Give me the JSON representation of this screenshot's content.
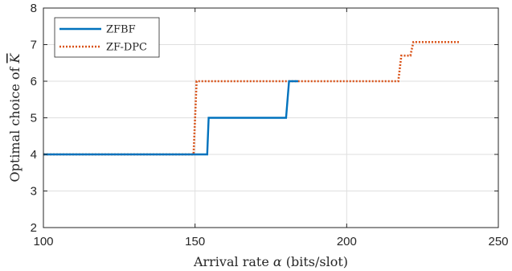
{
  "chart_data": {
    "type": "line",
    "title": "",
    "xlabel_text": "Arrival rate ",
    "xlabel_symbol": "α",
    "xlabel_unit": " (bits/slot)",
    "ylabel_text": "Optimal choice of ",
    "ylabel_symbol": "K",
    "xlim": [
      100,
      250
    ],
    "ylim": [
      2,
      8
    ],
    "xticks": [
      100,
      150,
      200,
      250
    ],
    "yticks": [
      2,
      3,
      4,
      5,
      6,
      7,
      8
    ],
    "grid": true,
    "legend_position": "top-left",
    "series": [
      {
        "name": "ZFBF",
        "color": "#0072BD",
        "style": "solid",
        "x": [
          100,
          154,
          154.5,
          180,
          181,
          184
        ],
        "y": [
          4,
          4,
          5,
          5,
          6,
          6
        ]
      },
      {
        "name": "ZF-DPC",
        "color": "#D95319",
        "style": "dotted",
        "x": [
          100,
          149.5,
          150.5,
          217,
          218,
          221,
          222,
          237
        ],
        "y": [
          4,
          4,
          6,
          6,
          6.7,
          6.7,
          7.07,
          7.07
        ]
      }
    ]
  }
}
